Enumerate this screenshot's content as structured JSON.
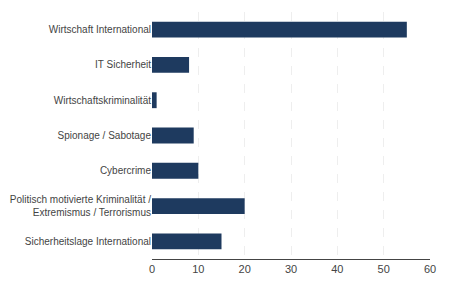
{
  "chart_data": {
    "type": "bar",
    "orientation": "horizontal",
    "categories": [
      "Sicherheitslage International",
      "Politisch motivierte Kriminalität /\nExtremismus / Terrorismus",
      "Cybercrime",
      "Spionage / Sabotage",
      "Wirtschaftskriminalität",
      "IT Sicherheit",
      "Wirtschaft International"
    ],
    "values": [
      15,
      20,
      10,
      9,
      1,
      8,
      55
    ],
    "color": "#1e3a5f",
    "xlim": [
      0,
      60
    ],
    "xticks": [
      0,
      10,
      20,
      30,
      40,
      50,
      60
    ],
    "grid": true
  }
}
